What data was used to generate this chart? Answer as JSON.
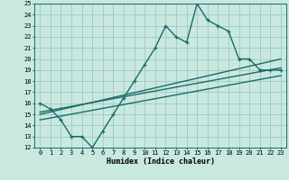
{
  "title": "",
  "xlabel": "Humidex (Indice chaleur)",
  "bg_color": "#c8e8e0",
  "grid_color": "#a0c8c0",
  "line_color": "#1a6b6b",
  "ylim": [
    12,
    25
  ],
  "xlim": [
    -0.5,
    23.5
  ],
  "yticks": [
    12,
    13,
    14,
    15,
    16,
    17,
    18,
    19,
    20,
    21,
    22,
    23,
    24,
    25
  ],
  "xticks": [
    0,
    1,
    2,
    3,
    4,
    5,
    6,
    7,
    8,
    9,
    10,
    11,
    12,
    13,
    14,
    15,
    16,
    17,
    18,
    19,
    20,
    21,
    22,
    23
  ],
  "main_x": [
    0,
    1,
    2,
    3,
    4,
    5,
    6,
    7,
    8,
    9,
    10,
    11,
    12,
    13,
    14,
    15,
    16,
    17,
    18,
    19,
    20,
    21,
    22,
    23
  ],
  "main_y": [
    16.0,
    15.5,
    14.5,
    13.0,
    13.0,
    12.0,
    13.5,
    15.0,
    16.5,
    18.0,
    19.5,
    21.0,
    23.0,
    22.0,
    21.5,
    25.0,
    23.5,
    23.0,
    22.5,
    20.0,
    20.0,
    19.0,
    19.0,
    19.0
  ],
  "trend1_x": [
    0,
    23
  ],
  "trend1_y": [
    15.0,
    20.0
  ],
  "trend2_x": [
    0,
    23
  ],
  "trend2_y": [
    14.5,
    18.5
  ],
  "trend3_x": [
    0,
    23
  ],
  "trend3_y": [
    15.2,
    19.2
  ],
  "marker_size": 3.5,
  "line_width": 1.0,
  "font_size_tick": 5.0,
  "font_size_label": 6.0
}
